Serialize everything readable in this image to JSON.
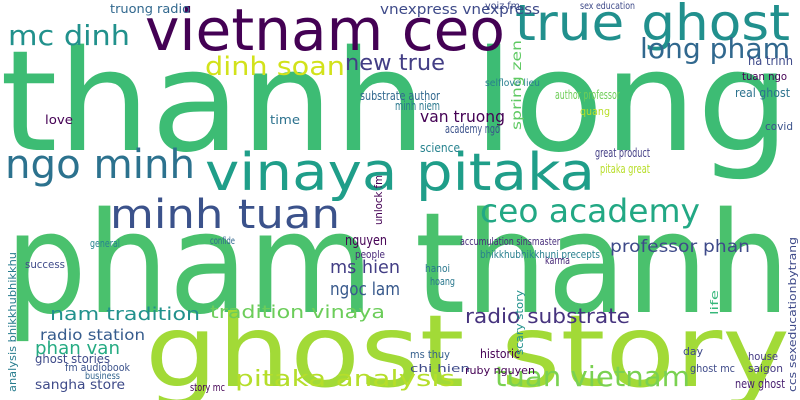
{
  "words": [
    {
      "text": "thanh long",
      "color": "#3dbc74"
    },
    {
      "text": "pham thanh",
      "color": "#4ac16d"
    },
    {
      "text": "ghost story",
      "color": "#a2da37"
    },
    {
      "text": "vietnam ceo",
      "color": "#440154"
    },
    {
      "text": "true ghost",
      "color": "#21908d"
    },
    {
      "text": "vinaya pitaka",
      "color": "#1f9e89"
    },
    {
      "text": "ngo minh",
      "color": "#2c728e"
    },
    {
      "text": "minh tuan",
      "color": "#3b528b"
    },
    {
      "text": "ceo academy",
      "color": "#22a884"
    },
    {
      "text": "long pham",
      "color": "#31688e"
    },
    {
      "text": "dinh soan",
      "color": "#d2e21b"
    },
    {
      "text": "mc dinh",
      "color": "#21918c"
    },
    {
      "text": "new true",
      "color": "#433e85"
    },
    {
      "text": "tuan vietnam",
      "color": "#7ad151"
    },
    {
      "text": "pitaka analysis",
      "color": "#b5de2b"
    },
    {
      "text": "nam tradition",
      "color": "#21918c"
    },
    {
      "text": "tradition vinaya",
      "color": "#6ccd5a"
    },
    {
      "text": "radio substrate",
      "color": "#46337e"
    },
    {
      "text": "ms hien",
      "color": "#433e85"
    },
    {
      "text": "ngoc lam",
      "color": "#38598c"
    },
    {
      "text": "phan van",
      "color": "#25ab82"
    },
    {
      "text": "radio station",
      "color": "#365c8d"
    },
    {
      "text": "sangha store",
      "color": "#3e4a89"
    },
    {
      "text": "van truong",
      "color": "#440154"
    },
    {
      "text": "professor phan",
      "color": "#3e4a89"
    },
    {
      "text": "nguyen",
      "color": "#440154"
    },
    {
      "text": "vnexpress vnexpress",
      "color": "#3e4a89"
    },
    {
      "text": "truong radio",
      "color": "#31688e"
    },
    {
      "text": "substrate author",
      "color": "#31688e"
    },
    {
      "text": "minh niem",
      "color": "#2a788e"
    },
    {
      "text": "author professor",
      "color": "#6ece58"
    },
    {
      "text": "accumulation sinsmaster",
      "color": "#472d7b"
    },
    {
      "text": "bhikkhubhikkhuni precepts",
      "color": "#277f8e"
    },
    {
      "text": "great product",
      "color": "#433e85"
    },
    {
      "text": "pitaka great",
      "color": "#b8de29"
    },
    {
      "text": "quang",
      "color": "#b8de29"
    },
    {
      "text": "academy ngo",
      "color": "#3b528b"
    },
    {
      "text": "love",
      "color": "#440154"
    },
    {
      "text": "time",
      "color": "#2c728e"
    },
    {
      "text": "science",
      "color": "#26828e"
    },
    {
      "text": "confide",
      "color": "#31688e"
    },
    {
      "text": "people",
      "color": "#482878"
    },
    {
      "text": "success",
      "color": "#3e4a89"
    },
    {
      "text": "general",
      "color": "#26828e"
    },
    {
      "text": "historic",
      "color": "#440154"
    },
    {
      "text": "ms thuy",
      "color": "#355f8d"
    },
    {
      "text": "chi hien",
      "color": "#3e4a89"
    },
    {
      "text": "ruby nguyen",
      "color": "#440154"
    },
    {
      "text": "story mc",
      "color": "#440154"
    },
    {
      "text": "fm audiobook",
      "color": "#3b528b"
    },
    {
      "text": "hanoi",
      "color": "#2a788e"
    },
    {
      "text": "hoang",
      "color": "#2a788e"
    },
    {
      "text": "karma",
      "color": "#482878"
    },
    {
      "text": "business",
      "color": "#32648e"
    },
    {
      "text": "spring zen",
      "color": "#5ec962"
    },
    {
      "text": "analysis bhikkhubhikkhu",
      "color": "#287c8e"
    },
    {
      "text": "ccs sexeducationbytrang",
      "color": "#3e4a89"
    },
    {
      "text": "scary story",
      "color": "#21918c"
    },
    {
      "text": "unlock fm",
      "color": "#440154"
    },
    {
      "text": "life",
      "color": "#35b779"
    },
    {
      "text": "ghost stories",
      "color": "#3e4a89"
    },
    {
      "text": "new ghost",
      "color": "#481f70"
    },
    {
      "text": "house",
      "color": "#443a83"
    },
    {
      "text": "saigon",
      "color": "#443a83"
    },
    {
      "text": "day",
      "color": "#3e4a89"
    },
    {
      "text": "ghost mc",
      "color": "#3e4a89"
    },
    {
      "text": "real ghost",
      "color": "#2c728e"
    },
    {
      "text": "tuan ngo",
      "color": "#440154"
    },
    {
      "text": "ha trinh",
      "color": "#3e4a89"
    },
    {
      "text": "covid",
      "color": "#3b528b"
    },
    {
      "text": "selflove lieu",
      "color": "#277f8e"
    },
    {
      "text": "voiz fm",
      "color": "#3e4a89"
    },
    {
      "text": "sex education",
      "color": "#3e4a89"
    }
  ]
}
